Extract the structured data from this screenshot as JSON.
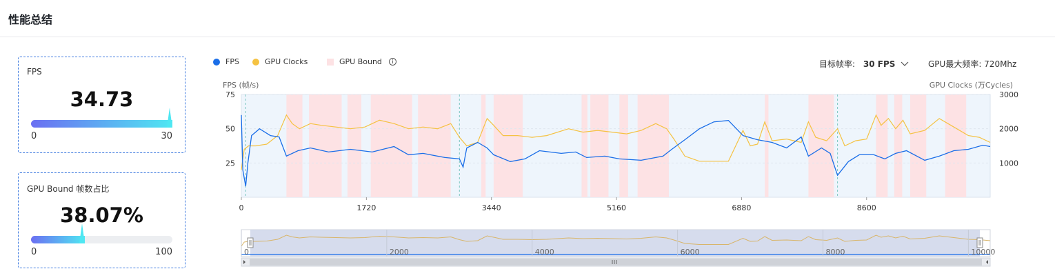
{
  "header": {
    "title": "性能总结"
  },
  "cards": {
    "fps": {
      "label": "FPS",
      "value": "34.73",
      "min": "0",
      "max": "30",
      "fraction": 1.0
    },
    "gpu_bound": {
      "label": "GPU Bound 帧数占比",
      "value": "38.07%",
      "min": "0",
      "max": "100",
      "fraction": 0.3807
    }
  },
  "controls": {
    "target_label": "目标帧率:",
    "target_value": "30 FPS",
    "gpu_max_label": "GPU最大频率: 720Mhz"
  },
  "colors": {
    "fps": "#1a6ee8",
    "gpu": "#f5c242",
    "bound": "#fde2e4",
    "accent": "#3f7be0"
  },
  "chart_data": {
    "type": "line",
    "legend": [
      "FPS",
      "GPU Clocks",
      "GPU Bound"
    ],
    "left_axis": {
      "title": "FPS (帧/s)",
      "ticks": [
        "75",
        "50",
        "25"
      ],
      "range": [
        0,
        75
      ]
    },
    "right_axis": {
      "title": "GPU Clocks (万Cycles)",
      "ticks": [
        "3000",
        "2000",
        "1000"
      ],
      "range": [
        0,
        3000
      ]
    },
    "x_ticks": [
      "0",
      "1720",
      "3440",
      "5160",
      "6880",
      "8600"
    ],
    "x_range": [
      0,
      10300
    ],
    "zoom_ticks": [
      "0",
      "2000",
      "4000",
      "6000",
      "8000",
      "10000"
    ],
    "gpu_bound_ranges": [
      [
        620,
        840
      ],
      [
        930,
        1380
      ],
      [
        1460,
        1650
      ],
      [
        1780,
        2350
      ],
      [
        2430,
        2880
      ],
      [
        3300,
        3360
      ],
      [
        3470,
        3870
      ],
      [
        4680,
        4760
      ],
      [
        4800,
        5050
      ],
      [
        5200,
        5320
      ],
      [
        5450,
        5880
      ],
      [
        7200,
        7250
      ],
      [
        7800,
        8150
      ],
      [
        8730,
        8890
      ],
      [
        8980,
        9090
      ],
      [
        9200,
        9420
      ],
      [
        9680,
        9970
      ]
    ],
    "fps_series": [
      [
        0,
        60
      ],
      [
        20,
        20
      ],
      [
        60,
        8
      ],
      [
        90,
        25
      ],
      [
        140,
        45
      ],
      [
        250,
        50
      ],
      [
        400,
        45
      ],
      [
        520,
        44
      ],
      [
        620,
        30
      ],
      [
        780,
        34
      ],
      [
        950,
        36
      ],
      [
        1200,
        33
      ],
      [
        1500,
        35
      ],
      [
        1800,
        33
      ],
      [
        2100,
        37
      ],
      [
        2300,
        31
      ],
      [
        2500,
        32
      ],
      [
        2800,
        29
      ],
      [
        3000,
        28
      ],
      [
        3050,
        22
      ],
      [
        3100,
        36
      ],
      [
        3250,
        40
      ],
      [
        3380,
        36
      ],
      [
        3470,
        31
      ],
      [
        3700,
        26
      ],
      [
        3900,
        28
      ],
      [
        4100,
        34
      ],
      [
        4400,
        32
      ],
      [
        4600,
        33
      ],
      [
        4750,
        29
      ],
      [
        5000,
        30
      ],
      [
        5200,
        28
      ],
      [
        5500,
        27
      ],
      [
        5800,
        30
      ],
      [
        5920,
        35
      ],
      [
        6100,
        42
      ],
      [
        6300,
        50
      ],
      [
        6500,
        55
      ],
      [
        6700,
        56
      ],
      [
        6900,
        45
      ],
      [
        7100,
        42
      ],
      [
        7300,
        40
      ],
      [
        7500,
        36
      ],
      [
        7700,
        44
      ],
      [
        7800,
        30
      ],
      [
        7980,
        36
      ],
      [
        8100,
        32
      ],
      [
        8200,
        16
      ],
      [
        8350,
        26
      ],
      [
        8500,
        31
      ],
      [
        8700,
        31
      ],
      [
        8850,
        28
      ],
      [
        9000,
        32
      ],
      [
        9150,
        34
      ],
      [
        9400,
        27
      ],
      [
        9600,
        30
      ],
      [
        9800,
        34
      ],
      [
        10000,
        35
      ],
      [
        10200,
        38
      ],
      [
        10300,
        37
      ]
    ],
    "gpu_series": [
      [
        0,
        800
      ],
      [
        40,
        1400
      ],
      [
        100,
        1500
      ],
      [
        200,
        1500
      ],
      [
        350,
        1550
      ],
      [
        500,
        1800
      ],
      [
        620,
        2400
      ],
      [
        700,
        2150
      ],
      [
        800,
        2000
      ],
      [
        950,
        2150
      ],
      [
        1100,
        2100
      ],
      [
        1300,
        2050
      ],
      [
        1500,
        2000
      ],
      [
        1700,
        2050
      ],
      [
        1900,
        2250
      ],
      [
        2100,
        2150
      ],
      [
        2300,
        2000
      ],
      [
        2500,
        2050
      ],
      [
        2700,
        2000
      ],
      [
        2880,
        2150
      ],
      [
        3000,
        1750
      ],
      [
        3100,
        1500
      ],
      [
        3250,
        1600
      ],
      [
        3380,
        2300
      ],
      [
        3470,
        2100
      ],
      [
        3600,
        1800
      ],
      [
        3800,
        1800
      ],
      [
        4000,
        1750
      ],
      [
        4200,
        1800
      ],
      [
        4500,
        2000
      ],
      [
        4700,
        1900
      ],
      [
        4900,
        1950
      ],
      [
        5100,
        1900
      ],
      [
        5300,
        1850
      ],
      [
        5500,
        1950
      ],
      [
        5700,
        2150
      ],
      [
        5850,
        2000
      ],
      [
        5950,
        1700
      ],
      [
        6100,
        1200
      ],
      [
        6300,
        1050
      ],
      [
        6500,
        1050
      ],
      [
        6700,
        1050
      ],
      [
        6900,
        1950
      ],
      [
        7000,
        1500
      ],
      [
        7100,
        1550
      ],
      [
        7200,
        2200
      ],
      [
        7300,
        1650
      ],
      [
        7500,
        1700
      ],
      [
        7700,
        1600
      ],
      [
        7800,
        2200
      ],
      [
        7900,
        1750
      ],
      [
        8050,
        1650
      ],
      [
        8200,
        2000
      ],
      [
        8300,
        1500
      ],
      [
        8450,
        1650
      ],
      [
        8600,
        1700
      ],
      [
        8730,
        2400
      ],
      [
        8800,
        2100
      ],
      [
        8900,
        2300
      ],
      [
        9000,
        2000
      ],
      [
        9100,
        2250
      ],
      [
        9200,
        1850
      ],
      [
        9400,
        1950
      ],
      [
        9600,
        2300
      ],
      [
        9800,
        2050
      ],
      [
        10000,
        1800
      ],
      [
        10150,
        1750
      ],
      [
        10300,
        1600
      ]
    ]
  }
}
